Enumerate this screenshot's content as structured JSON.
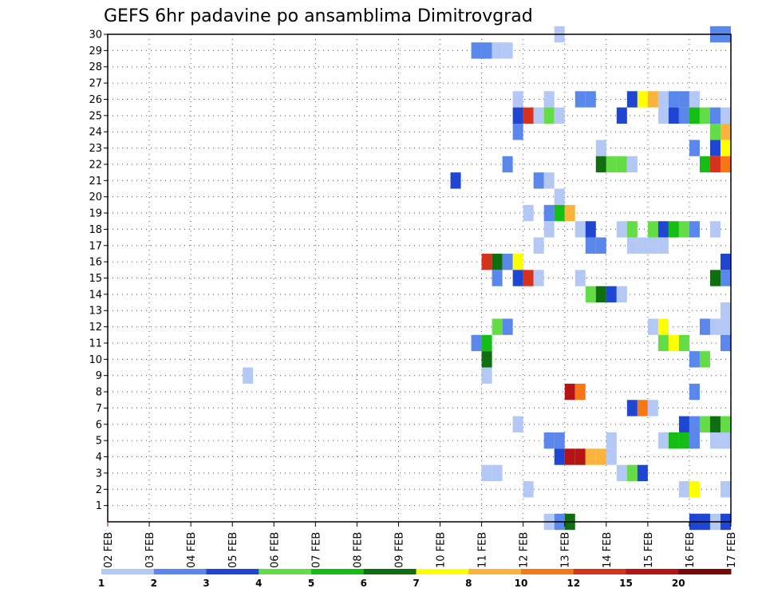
{
  "chart_data": {
    "type": "heatmap",
    "title": "GEFS 6hr padavine po ansamblima Dimitrovgrad",
    "xlabel": "",
    "ylabel": "",
    "x_ticks": [
      "02 FEB",
      "03 FEB",
      "04 FEB",
      "05 FEB",
      "06 FEB",
      "07 FEB",
      "08 FEB",
      "09 FEB",
      "10 FEB",
      "11 FEB",
      "12 FEB",
      "13 FEB",
      "14 FEB",
      "15 FEB",
      "16 FEB",
      "17 FEB"
    ],
    "x_range": [
      "02 FEB",
      "17 FEB"
    ],
    "step_hours": 6,
    "y_ticks": [
      1,
      2,
      3,
      4,
      5,
      6,
      7,
      8,
      9,
      10,
      11,
      12,
      13,
      14,
      15,
      16,
      17,
      18,
      19,
      20,
      21,
      22,
      23,
      24,
      25,
      26,
      27,
      28,
      29,
      30
    ],
    "y_range": [
      0,
      30
    ],
    "grid": true,
    "legend": {
      "position": "bottom",
      "labels": [
        "1",
        "2",
        "3",
        "4",
        "5",
        "6",
        "7",
        "8",
        "10",
        "12",
        "15",
        "20"
      ],
      "colors": [
        "#b4c8f5",
        "#5a87eb",
        "#1e46d2",
        "#64dc46",
        "#14be14",
        "#0f6e0f",
        "#ffff00",
        "#fab43c",
        "#f57814",
        "#d7321e",
        "#b41414",
        "#780a0a"
      ]
    },
    "cells": [
      {
        "t": "2025-02-13T00",
        "m": 30,
        "c": 0
      },
      {
        "t": "2025-02-16T18",
        "m": 30,
        "c": 1
      },
      {
        "t": "2025-02-17T00",
        "m": 30,
        "c": 1
      },
      {
        "t": "2025-02-11T00",
        "m": 29,
        "c": 1
      },
      {
        "t": "2025-02-11T06",
        "m": 29,
        "c": 1
      },
      {
        "t": "2025-02-11T12",
        "m": 29,
        "c": 0
      },
      {
        "t": "2025-02-11T18",
        "m": 29,
        "c": 0
      },
      {
        "t": "2025-02-12T00",
        "m": 26,
        "c": 0
      },
      {
        "t": "2025-02-12T18",
        "m": 26,
        "c": 0
      },
      {
        "t": "2025-02-13T12",
        "m": 26,
        "c": 1
      },
      {
        "t": "2025-02-13T18",
        "m": 26,
        "c": 1
      },
      {
        "t": "2025-02-14T18",
        "m": 26,
        "c": 2
      },
      {
        "t": "2025-02-15T00",
        "m": 26,
        "c": 6
      },
      {
        "t": "2025-02-15T06",
        "m": 26,
        "c": 7
      },
      {
        "t": "2025-02-15T12",
        "m": 26,
        "c": 0
      },
      {
        "t": "2025-02-15T18",
        "m": 26,
        "c": 1
      },
      {
        "t": "2025-02-16T00",
        "m": 26,
        "c": 1
      },
      {
        "t": "2025-02-16T06",
        "m": 26,
        "c": 0
      },
      {
        "t": "2025-02-12T00",
        "m": 25,
        "c": 2
      },
      {
        "t": "2025-02-12T06",
        "m": 25,
        "c": 9
      },
      {
        "t": "2025-02-12T12",
        "m": 25,
        "c": 0
      },
      {
        "t": "2025-02-12T18",
        "m": 25,
        "c": 3
      },
      {
        "t": "2025-02-13T00",
        "m": 25,
        "c": 0
      },
      {
        "t": "2025-02-14T12",
        "m": 25,
        "c": 2
      },
      {
        "t": "2025-02-15T12",
        "m": 25,
        "c": 0
      },
      {
        "t": "2025-02-15T18",
        "m": 25,
        "c": 2
      },
      {
        "t": "2025-02-16T00",
        "m": 25,
        "c": 1
      },
      {
        "t": "2025-02-16T06",
        "m": 25,
        "c": 4
      },
      {
        "t": "2025-02-16T12",
        "m": 25,
        "c": 3
      },
      {
        "t": "2025-02-16T18",
        "m": 25,
        "c": 1
      },
      {
        "t": "2025-02-17T00",
        "m": 25,
        "c": 0
      },
      {
        "t": "2025-02-12T00",
        "m": 24,
        "c": 1
      },
      {
        "t": "2025-02-16T18",
        "m": 24,
        "c": 3
      },
      {
        "t": "2025-02-17T00",
        "m": 24,
        "c": 7
      },
      {
        "t": "2025-02-14T00",
        "m": 23,
        "c": 0
      },
      {
        "t": "2025-02-16T06",
        "m": 23,
        "c": 1
      },
      {
        "t": "2025-02-16T18",
        "m": 23,
        "c": 2
      },
      {
        "t": "2025-02-17T00",
        "m": 23,
        "c": 6
      },
      {
        "t": "2025-02-11T18",
        "m": 22,
        "c": 1
      },
      {
        "t": "2025-02-14T00",
        "m": 22,
        "c": 5
      },
      {
        "t": "2025-02-14T06",
        "m": 22,
        "c": 3
      },
      {
        "t": "2025-02-14T12",
        "m": 22,
        "c": 3
      },
      {
        "t": "2025-02-14T18",
        "m": 22,
        "c": 0
      },
      {
        "t": "2025-02-16T12",
        "m": 22,
        "c": 4
      },
      {
        "t": "2025-02-16T18",
        "m": 22,
        "c": 9
      },
      {
        "t": "2025-02-17T00",
        "m": 22,
        "c": 8
      },
      {
        "t": "2025-02-10T12",
        "m": 21,
        "c": 2
      },
      {
        "t": "2025-02-12T12",
        "m": 21,
        "c": 1
      },
      {
        "t": "2025-02-12T18",
        "m": 21,
        "c": 0
      },
      {
        "t": "2025-02-13T00",
        "m": 20,
        "c": 0
      },
      {
        "t": "2025-02-12T06",
        "m": 19,
        "c": 0
      },
      {
        "t": "2025-02-12T18",
        "m": 19,
        "c": 1
      },
      {
        "t": "2025-02-13T00",
        "m": 19,
        "c": 4
      },
      {
        "t": "2025-02-13T06",
        "m": 19,
        "c": 7
      },
      {
        "t": "2025-02-12T18",
        "m": 18,
        "c": 0
      },
      {
        "t": "2025-02-13T12",
        "m": 18,
        "c": 0
      },
      {
        "t": "2025-02-13T18",
        "m": 18,
        "c": 2
      },
      {
        "t": "2025-02-14T12",
        "m": 18,
        "c": 0
      },
      {
        "t": "2025-02-14T18",
        "m": 18,
        "c": 3
      },
      {
        "t": "2025-02-15T06",
        "m": 18,
        "c": 3
      },
      {
        "t": "2025-02-15T12",
        "m": 18,
        "c": 2
      },
      {
        "t": "2025-02-15T18",
        "m": 18,
        "c": 4
      },
      {
        "t": "2025-02-16T00",
        "m": 18,
        "c": 3
      },
      {
        "t": "2025-02-16T06",
        "m": 18,
        "c": 1
      },
      {
        "t": "2025-02-16T18",
        "m": 18,
        "c": 0
      },
      {
        "t": "2025-02-12T12",
        "m": 17,
        "c": 0
      },
      {
        "t": "2025-02-13T18",
        "m": 17,
        "c": 1
      },
      {
        "t": "2025-02-14T00",
        "m": 17,
        "c": 1
      },
      {
        "t": "2025-02-14T18",
        "m": 17,
        "c": 0
      },
      {
        "t": "2025-02-15T00",
        "m": 17,
        "c": 0
      },
      {
        "t": "2025-02-15T06",
        "m": 17,
        "c": 0
      },
      {
        "t": "2025-02-15T12",
        "m": 17,
        "c": 0
      },
      {
        "t": "2025-02-11T06",
        "m": 16,
        "c": 9
      },
      {
        "t": "2025-02-11T12",
        "m": 16,
        "c": 5
      },
      {
        "t": "2025-02-11T18",
        "m": 16,
        "c": 1
      },
      {
        "t": "2025-02-12T00",
        "m": 16,
        "c": 6
      },
      {
        "t": "2025-02-17T00",
        "m": 16,
        "c": 2
      },
      {
        "t": "2025-02-11T12",
        "m": 15,
        "c": 1
      },
      {
        "t": "2025-02-12T00",
        "m": 15,
        "c": 2
      },
      {
        "t": "2025-02-12T06",
        "m": 15,
        "c": 9
      },
      {
        "t": "2025-02-12T12",
        "m": 15,
        "c": 0
      },
      {
        "t": "2025-02-13T12",
        "m": 15,
        "c": 0
      },
      {
        "t": "2025-02-16T18",
        "m": 15,
        "c": 5
      },
      {
        "t": "2025-02-17T00",
        "m": 15,
        "c": 1
      },
      {
        "t": "2025-02-13T18",
        "m": 14,
        "c": 3
      },
      {
        "t": "2025-02-14T00",
        "m": 14,
        "c": 5
      },
      {
        "t": "2025-02-14T06",
        "m": 14,
        "c": 2
      },
      {
        "t": "2025-02-14T12",
        "m": 14,
        "c": 0
      },
      {
        "t": "2025-02-17T00",
        "m": 13,
        "c": 0
      },
      {
        "t": "2025-02-11T12",
        "m": 12,
        "c": 3
      },
      {
        "t": "2025-02-11T18",
        "m": 12,
        "c": 1
      },
      {
        "t": "2025-02-15T06",
        "m": 12,
        "c": 0
      },
      {
        "t": "2025-02-15T12",
        "m": 12,
        "c": 6
      },
      {
        "t": "2025-02-16T12",
        "m": 12,
        "c": 1
      },
      {
        "t": "2025-02-16T18",
        "m": 12,
        "c": 0
      },
      {
        "t": "2025-02-17T00",
        "m": 12,
        "c": 0
      },
      {
        "t": "2025-02-11T00",
        "m": 11,
        "c": 1
      },
      {
        "t": "2025-02-11T06",
        "m": 11,
        "c": 4
      },
      {
        "t": "2025-02-15T12",
        "m": 11,
        "c": 3
      },
      {
        "t": "2025-02-15T18",
        "m": 11,
        "c": 6
      },
      {
        "t": "2025-02-16T00",
        "m": 11,
        "c": 3
      },
      {
        "t": "2025-02-17T00",
        "m": 11,
        "c": 1
      },
      {
        "t": "2025-02-11T06",
        "m": 10,
        "c": 5
      },
      {
        "t": "2025-02-16T06",
        "m": 10,
        "c": 1
      },
      {
        "t": "2025-02-16T12",
        "m": 10,
        "c": 3
      },
      {
        "t": "2025-02-05T12",
        "m": 9,
        "c": 0
      },
      {
        "t": "2025-02-11T06",
        "m": 9,
        "c": 0
      },
      {
        "t": "2025-02-13T06",
        "m": 8,
        "c": 10
      },
      {
        "t": "2025-02-13T12",
        "m": 8,
        "c": 8
      },
      {
        "t": "2025-02-16T06",
        "m": 8,
        "c": 1
      },
      {
        "t": "2025-02-14T18",
        "m": 7,
        "c": 2
      },
      {
        "t": "2025-02-15T00",
        "m": 7,
        "c": 8
      },
      {
        "t": "2025-02-15T06",
        "m": 7,
        "c": 0
      },
      {
        "t": "2025-02-12T00",
        "m": 6,
        "c": 0
      },
      {
        "t": "2025-02-16T00",
        "m": 6,
        "c": 2
      },
      {
        "t": "2025-02-16T06",
        "m": 6,
        "c": 1
      },
      {
        "t": "2025-02-16T12",
        "m": 6,
        "c": 3
      },
      {
        "t": "2025-02-16T18",
        "m": 6,
        "c": 5
      },
      {
        "t": "2025-02-17T00",
        "m": 6,
        "c": 3
      },
      {
        "t": "2025-02-12T18",
        "m": 5,
        "c": 1
      },
      {
        "t": "2025-02-13T00",
        "m": 5,
        "c": 1
      },
      {
        "t": "2025-02-14T06",
        "m": 5,
        "c": 0
      },
      {
        "t": "2025-02-15T12",
        "m": 5,
        "c": 0
      },
      {
        "t": "2025-02-15T18",
        "m": 5,
        "c": 4
      },
      {
        "t": "2025-02-16T00",
        "m": 5,
        "c": 4
      },
      {
        "t": "2025-02-16T06",
        "m": 5,
        "c": 1
      },
      {
        "t": "2025-02-16T18",
        "m": 5,
        "c": 0
      },
      {
        "t": "2025-02-17T00",
        "m": 5,
        "c": 0
      },
      {
        "t": "2025-02-13T00",
        "m": 4,
        "c": 2
      },
      {
        "t": "2025-02-13T06",
        "m": 4,
        "c": 10
      },
      {
        "t": "2025-02-13T12",
        "m": 4,
        "c": 10
      },
      {
        "t": "2025-02-13T18",
        "m": 4,
        "c": 7
      },
      {
        "t": "2025-02-14T00",
        "m": 4,
        "c": 7
      },
      {
        "t": "2025-02-14T06",
        "m": 4,
        "c": 0
      },
      {
        "t": "2025-02-11T06",
        "m": 3,
        "c": 0
      },
      {
        "t": "2025-02-11T12",
        "m": 3,
        "c": 0
      },
      {
        "t": "2025-02-14T12",
        "m": 3,
        "c": 0
      },
      {
        "t": "2025-02-14T18",
        "m": 3,
        "c": 3
      },
      {
        "t": "2025-02-15T00",
        "m": 3,
        "c": 2
      },
      {
        "t": "2025-02-12T06",
        "m": 2,
        "c": 0
      },
      {
        "t": "2025-02-16T00",
        "m": 2,
        "c": 0
      },
      {
        "t": "2025-02-16T06",
        "m": 2,
        "c": 6
      },
      {
        "t": "2025-02-17T00",
        "m": 2,
        "c": 0
      },
      {
        "t": "2025-02-12T18",
        "m": 0,
        "c": 0
      },
      {
        "t": "2025-02-13T00",
        "m": 0,
        "c": 1
      },
      {
        "t": "2025-02-13T06",
        "m": 0,
        "c": 5
      },
      {
        "t": "2025-02-16T06",
        "m": 0,
        "c": 2
      },
      {
        "t": "2025-02-16T12",
        "m": 0,
        "c": 2
      },
      {
        "t": "2025-02-16T18",
        "m": 0,
        "c": 0
      },
      {
        "t": "2025-02-17T00",
        "m": 0,
        "c": 2
      }
    ]
  }
}
